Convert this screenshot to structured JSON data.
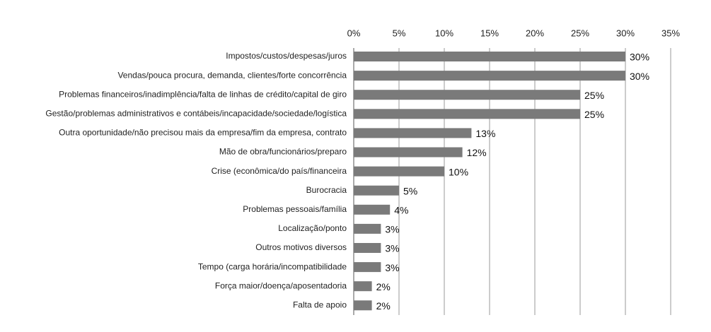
{
  "chart_data": {
    "type": "barh",
    "categories": [
      "Impostos/custos/despesas/juros",
      "Vendas/pouca procura, demanda, clientes/forte concorrência",
      "Problemas financeiros/inadimplência/falta de linhas de crédito/capital de giro",
      "Gestão/problemas administrativos e contábeis/incapacidade/sociedade/logística",
      "Outra oportunidade/não precisou mais da empresa/fim da empresa, contrato",
      "Mão de obra/funcionários/preparo",
      "Crise (econômica/do país/financeira",
      "Burocracia",
      "Problemas pessoais/família",
      "Localização/ponto",
      "Outros motivos diversos",
      "Tempo (carga horária/incompatibilidade",
      "Força maior/doença/aposentadoria",
      "Falta de apoio"
    ],
    "values": [
      30,
      30,
      25,
      25,
      13,
      12,
      10,
      5,
      4,
      3,
      3,
      3,
      2,
      2
    ],
    "value_labels": [
      "30%",
      "30%",
      "25%",
      "25%",
      "13%",
      "12%",
      "10%",
      "5%",
      "4%",
      "3%",
      "3%",
      "3%",
      "2%",
      "2%"
    ],
    "color": "#7a7a7a",
    "xlim": [
      0,
      35
    ],
    "xticks": [
      {
        "value": 0,
        "label": "0%"
      },
      {
        "value": 5,
        "label": "5%"
      },
      {
        "value": 10,
        "label": "10%"
      },
      {
        "value": 15,
        "label": "15%"
      },
      {
        "value": 20,
        "label": "20%"
      },
      {
        "value": 25,
        "label": "25%"
      },
      {
        "value": 30,
        "label": "30%"
      },
      {
        "value": 35,
        "label": "35%"
      }
    ],
    "grid": true
  }
}
